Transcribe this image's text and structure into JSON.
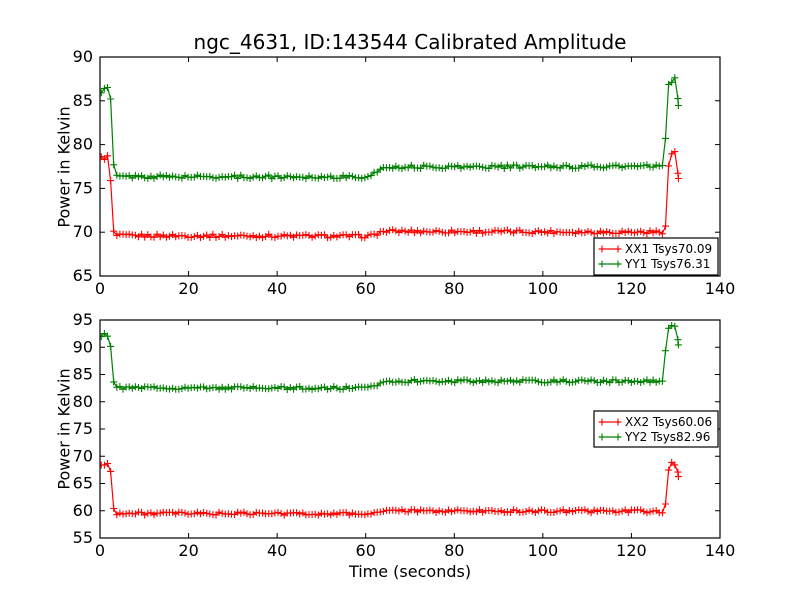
{
  "figure": {
    "title": "ngc_4631, ID:143544 Calibrated Amplitude",
    "background": "#ffffff",
    "text_color": "#000000",
    "accent_red": "#ff0000",
    "accent_green": "#008000"
  },
  "chart_data": [
    {
      "type": "line",
      "title": "",
      "xlabel": "",
      "ylabel": "Power in Kelvin",
      "xlim": [
        0,
        140
      ],
      "ylim": [
        65,
        90
      ],
      "xticks": [
        0,
        20,
        40,
        60,
        80,
        100,
        120,
        140
      ],
      "yticks": [
        65,
        70,
        75,
        80,
        85,
        90
      ],
      "grid": false,
      "legend_position": "lower right",
      "marker": "plus",
      "cal_regions": [
        [
          0,
          2.6
        ],
        [
          127.4,
          131
        ]
      ],
      "series": [
        {
          "name": "XX1 Tsys70.09",
          "color": "#ff0000",
          "noise": 0.2,
          "cal_noise": 0.35,
          "keypoints": [
            [
              0.3,
              78.4
            ],
            [
              0.9,
              78.6
            ],
            [
              1.6,
              78.5
            ],
            [
              2.2,
              78.6
            ],
            [
              2.7,
              71.6
            ],
            [
              3.2,
              69.6
            ],
            [
              61,
              69.55
            ],
            [
              64,
              70.1
            ],
            [
              127.6,
              70.0
            ],
            [
              128.1,
              75.2
            ],
            [
              128.6,
              78.9
            ],
            [
              129.4,
              79.15
            ],
            [
              130.1,
              78.9
            ],
            [
              130.6,
              76.2
            ]
          ]
        },
        {
          "name": "YY1 Tsys76.31",
          "color": "#008000",
          "noise": 0.2,
          "cal_noise": 0.35,
          "keypoints": [
            [
              0.3,
              86.2
            ],
            [
              0.9,
              86.45
            ],
            [
              1.6,
              86.3
            ],
            [
              2.2,
              86.4
            ],
            [
              2.7,
              83.0
            ],
            [
              3.2,
              76.35
            ],
            [
              61,
              76.3
            ],
            [
              64,
              77.45
            ],
            [
              127.2,
              77.5
            ],
            [
              127.7,
              80.6
            ],
            [
              128.2,
              86.9
            ],
            [
              128.9,
              87.5
            ],
            [
              129.6,
              87.3
            ],
            [
              130.1,
              87.45
            ],
            [
              130.6,
              84.3
            ]
          ]
        }
      ]
    },
    {
      "type": "line",
      "title": "",
      "xlabel": "Time (seconds)",
      "ylabel": "Power in Kelvin",
      "xlim": [
        0,
        140
      ],
      "ylim": [
        55,
        95
      ],
      "xticks": [
        0,
        20,
        40,
        60,
        80,
        100,
        120,
        140
      ],
      "yticks": [
        55,
        60,
        65,
        70,
        75,
        80,
        85,
        90,
        95
      ],
      "grid": false,
      "legend_position": "center right",
      "marker": "plus",
      "cal_regions": [
        [
          0,
          2.6
        ],
        [
          127.4,
          131
        ]
      ],
      "series": [
        {
          "name": "XX2 Tsys60.06",
          "color": "#ff0000",
          "noise": 0.28,
          "cal_noise": 0.5,
          "keypoints": [
            [
              0.3,
              68.3
            ],
            [
              0.9,
              68.6
            ],
            [
              1.6,
              68.4
            ],
            [
              2.2,
              68.5
            ],
            [
              2.7,
              65.3
            ],
            [
              3.2,
              59.5
            ],
            [
              61,
              59.45
            ],
            [
              64,
              59.95
            ],
            [
              127.6,
              59.9
            ],
            [
              128.1,
              65.6
            ],
            [
              128.6,
              68.3
            ],
            [
              129.4,
              68.5
            ],
            [
              130.1,
              68.2
            ],
            [
              130.6,
              66.2
            ]
          ]
        },
        {
          "name": "YY2 Tsys82.96",
          "color": "#008000",
          "noise": 0.28,
          "cal_noise": 0.5,
          "keypoints": [
            [
              0.3,
              92.3
            ],
            [
              0.9,
              92.6
            ],
            [
              1.6,
              92.4
            ],
            [
              2.1,
              92.5
            ],
            [
              2.5,
              89.5
            ],
            [
              2.9,
              84.9
            ],
            [
              3.3,
              82.55
            ],
            [
              61,
              82.5
            ],
            [
              64,
              83.8
            ],
            [
              127.2,
              83.75
            ],
            [
              127.7,
              89.5
            ],
            [
              128.2,
              93.3
            ],
            [
              128.9,
              93.6
            ],
            [
              129.6,
              93.4
            ],
            [
              130.1,
              93.5
            ],
            [
              130.6,
              90.4
            ]
          ]
        }
      ]
    }
  ]
}
